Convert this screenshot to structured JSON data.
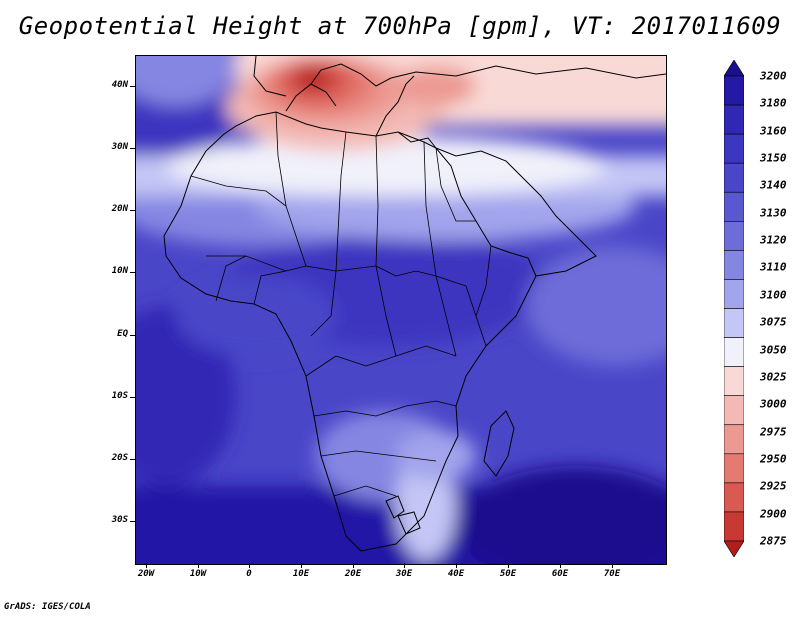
{
  "title": "Geopotential Height at 700hPa [gpm], VT: 2017011609",
  "credit": "GrADS: IGES/COLA",
  "map": {
    "lat_labels": [
      "40N",
      "30N",
      "20N",
      "10N",
      "EQ",
      "10S",
      "20S",
      "30S"
    ],
    "lon_labels": [
      "20W",
      "10W",
      "0",
      "10E",
      "20E",
      "30E",
      "40E",
      "50E",
      "60E",
      "70E"
    ]
  },
  "colorbar": {
    "levels": [
      "3200",
      "3180",
      "3160",
      "3150",
      "3140",
      "3130",
      "3120",
      "3110",
      "3100",
      "3075",
      "3050",
      "3025",
      "3000",
      "2975",
      "2950",
      "2925",
      "2900",
      "2875"
    ],
    "colors": [
      "#1a108f",
      "#2419a6",
      "#3028b5",
      "#3c36c0",
      "#4a46c8",
      "#5a58d0",
      "#6d6cd8",
      "#8586e2",
      "#a2a4ec",
      "#c4c6f5",
      "#f1f1fb",
      "#f9d9d6",
      "#f3b9b4",
      "#ec9992",
      "#e47a72",
      "#d95a52",
      "#c73a34",
      "#b11e1c"
    ]
  }
}
